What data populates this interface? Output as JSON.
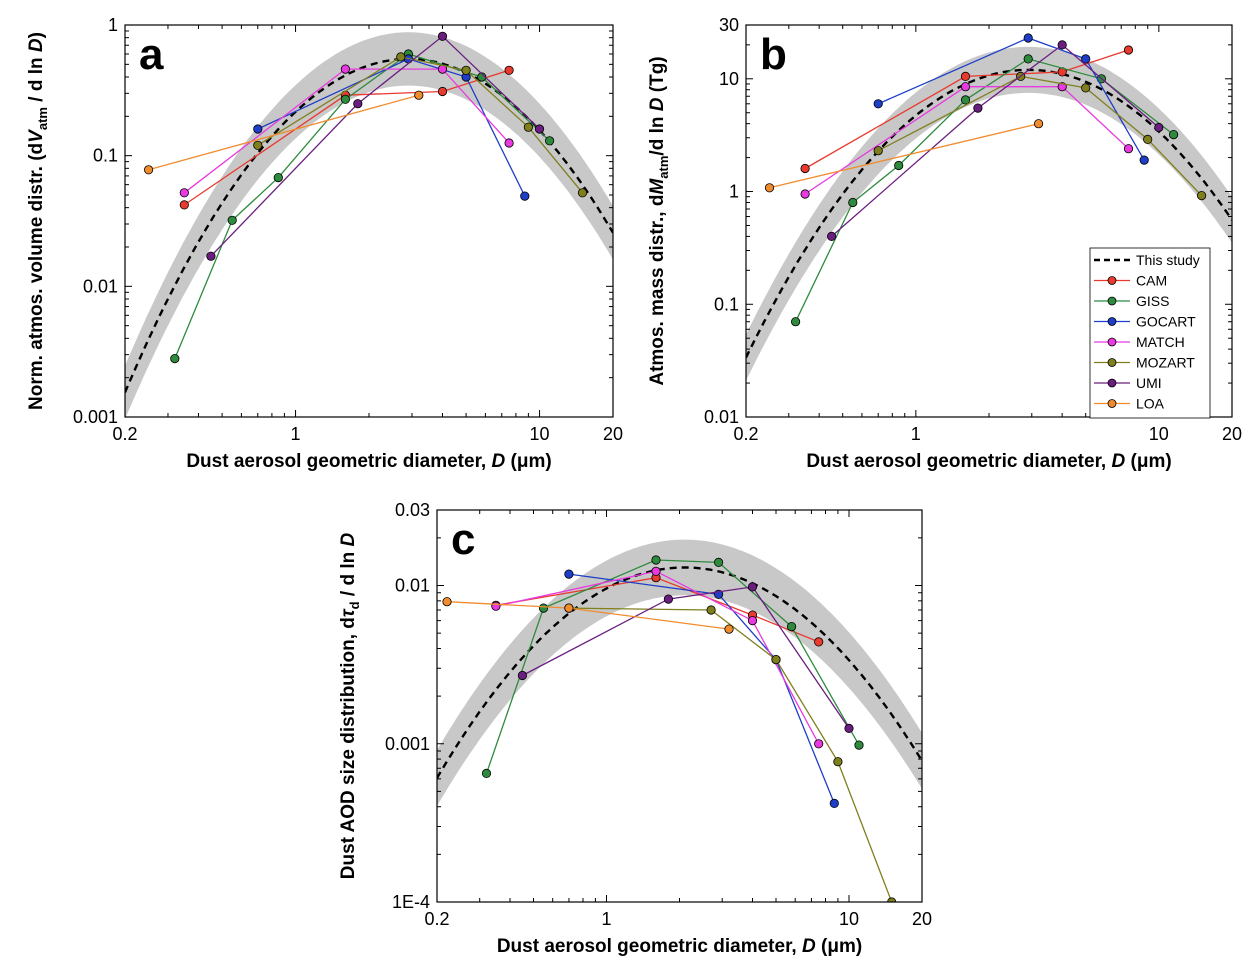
{
  "chart_data": [
    {
      "type": "line",
      "panel_label": "a",
      "xlabel": "Dust aerosol geometric diameter, D (μm)",
      "ylabel": "Norm. atmos. volume distr. (dVatm / d ln D)",
      "xscale": "log",
      "yscale": "log",
      "xlim": [
        0.2,
        20
      ],
      "ylim": [
        0.001,
        1
      ],
      "x_ticks": [
        "0.2",
        "1",
        "10",
        "20"
      ],
      "y_ticks": [
        "0.001",
        "0.01",
        "0.1",
        "1"
      ],
      "this_study": {
        "name": "This study",
        "color": "#000000",
        "style": "dashed",
        "mu": 2.9,
        "sigma": 0.78,
        "peak": 0.55,
        "band_factor": 1.6
      },
      "series": [
        {
          "name": "CAM",
          "color": "#e83a2e",
          "x": [
            0.35,
            1.6,
            4.0,
            7.5
          ],
          "y": [
            0.042,
            0.29,
            0.31,
            0.45
          ]
        },
        {
          "name": "GISS",
          "color": "#2e8b3e",
          "x": [
            0.32,
            0.55,
            0.85,
            1.6,
            2.9,
            5.8,
            11.0
          ],
          "y": [
            0.0028,
            0.032,
            0.068,
            0.27,
            0.6,
            0.4,
            0.13
          ]
        },
        {
          "name": "GOCART",
          "color": "#1e3ec8",
          "x": [
            0.7,
            2.9,
            5.0,
            8.7
          ],
          "y": [
            0.16,
            0.55,
            0.4,
            0.049
          ]
        },
        {
          "name": "MATCH",
          "color": "#e83ae0",
          "x": [
            0.35,
            1.6,
            4.0,
            7.5
          ],
          "y": [
            0.052,
            0.46,
            0.46,
            0.125
          ]
        },
        {
          "name": "MOZART",
          "color": "#7f7f1e",
          "x": [
            0.7,
            2.7,
            5.0,
            9.0,
            15.0
          ],
          "y": [
            0.12,
            0.57,
            0.45,
            0.165,
            0.052
          ]
        },
        {
          "name": "UMI",
          "color": "#6a1e7f",
          "x": [
            0.45,
            1.8,
            4.0,
            10.0
          ],
          "y": [
            0.017,
            0.25,
            0.82,
            0.16
          ]
        },
        {
          "name": "LOA",
          "color": "#f08c2e",
          "x": [
            0.25,
            3.2
          ],
          "y": [
            0.078,
            0.29
          ]
        }
      ]
    },
    {
      "type": "line",
      "panel_label": "b",
      "xlabel": "Dust aerosol geometric diameter, D (μm)",
      "ylabel": "Atmos. mass distr., dMatm/d ln D (Tg)",
      "xscale": "log",
      "yscale": "log",
      "xlim": [
        0.2,
        20
      ],
      "ylim": [
        0.01,
        30
      ],
      "x_ticks": [
        "0.2",
        "1",
        "10",
        "20"
      ],
      "y_ticks": [
        "0.01",
        "0.1",
        "1",
        "10",
        "30"
      ],
      "this_study": {
        "name": "This study",
        "color": "#000000",
        "style": "dashed",
        "mu": 2.9,
        "sigma": 0.78,
        "peak": 12,
        "band_factor": 1.6
      },
      "series": [
        {
          "name": "CAM",
          "color": "#e83a2e",
          "x": [
            0.35,
            1.6,
            4.0,
            7.5
          ],
          "y": [
            1.6,
            10.5,
            11.5,
            18.0
          ]
        },
        {
          "name": "GISS",
          "color": "#2e8b3e",
          "x": [
            0.32,
            0.55,
            0.85,
            1.6,
            2.9,
            5.8,
            11.5
          ],
          "y": [
            0.07,
            0.8,
            1.7,
            6.5,
            15.0,
            10.0,
            3.2
          ]
        },
        {
          "name": "GOCART",
          "color": "#1e3ec8",
          "x": [
            0.7,
            2.9,
            5.0,
            8.7
          ],
          "y": [
            6.0,
            23.0,
            15.0,
            1.9
          ]
        },
        {
          "name": "MATCH",
          "color": "#e83ae0",
          "x": [
            0.35,
            1.6,
            4.0,
            7.5
          ],
          "y": [
            0.95,
            8.5,
            8.5,
            2.4
          ]
        },
        {
          "name": "MOZART",
          "color": "#7f7f1e",
          "x": [
            0.7,
            2.7,
            5.0,
            9.0,
            15.0
          ],
          "y": [
            2.3,
            10.5,
            8.3,
            2.9,
            0.92
          ]
        },
        {
          "name": "UMI",
          "color": "#6a1e7f",
          "x": [
            0.45,
            1.8,
            4.0,
            10.0
          ],
          "y": [
            0.4,
            5.5,
            20.0,
            3.7
          ]
        },
        {
          "name": "LOA",
          "color": "#f08c2e",
          "x": [
            0.25,
            3.2
          ],
          "y": [
            1.08,
            4.0
          ]
        }
      ]
    },
    {
      "type": "line",
      "panel_label": "c",
      "xlabel": "Dust aerosol geometric diameter, D (μm)",
      "ylabel": "Dust AOD size distribution, dτd / d ln D",
      "xscale": "log",
      "yscale": "log",
      "xlim": [
        0.2,
        20
      ],
      "ylim": [
        0.0001,
        0.03
      ],
      "x_ticks": [
        "0.2",
        "1",
        "10",
        "20"
      ],
      "y_ticks": [
        "1E-4",
        "0.001",
        "0.01",
        "0.03"
      ],
      "this_study": {
        "name": "This study",
        "color": "#000000",
        "style": "dashed",
        "mu": 2.1,
        "sigma": 0.95,
        "peak": 0.013,
        "band_factor": 1.5
      },
      "series": [
        {
          "name": "CAM",
          "color": "#e83a2e",
          "x": [
            0.35,
            1.6,
            4.0,
            7.5
          ],
          "y": [
            0.0075,
            0.0112,
            0.0065,
            0.0044
          ]
        },
        {
          "name": "GISS",
          "color": "#2e8b3e",
          "x": [
            0.32,
            0.55,
            1.6,
            2.9,
            5.8,
            11.0
          ],
          "y": [
            0.00065,
            0.0072,
            0.0145,
            0.014,
            0.0055,
            0.00098
          ]
        },
        {
          "name": "GOCART",
          "color": "#1e3ec8",
          "x": [
            0.7,
            2.9,
            5.0,
            8.7
          ],
          "y": [
            0.0118,
            0.0088,
            0.0034,
            0.00042
          ]
        },
        {
          "name": "MATCH",
          "color": "#e83ae0",
          "x": [
            0.35,
            1.6,
            4.0,
            7.5
          ],
          "y": [
            0.0074,
            0.0123,
            0.006,
            0.001
          ]
        },
        {
          "name": "MOZART",
          "color": "#7f7f1e",
          "x": [
            0.7,
            2.7,
            5.0,
            9.0,
            15.0
          ],
          "y": [
            0.0072,
            0.007,
            0.0034,
            0.00077,
            0.0001
          ]
        },
        {
          "name": "UMI",
          "color": "#6a1e7f",
          "x": [
            0.45,
            1.8,
            4.0,
            10.0
          ],
          "y": [
            0.0027,
            0.0082,
            0.0098,
            0.00125
          ]
        },
        {
          "name": "LOA",
          "color": "#f08c2e",
          "x": [
            0.22,
            0.7,
            3.2
          ],
          "y": [
            0.0079,
            0.0072,
            0.0053
          ]
        }
      ]
    }
  ],
  "legend": {
    "placement": "bottom-right of panel b",
    "entries": [
      {
        "name": "This study",
        "color": "#000000",
        "style": "dashed"
      },
      {
        "name": "CAM",
        "color": "#e83a2e"
      },
      {
        "name": "GISS",
        "color": "#2e8b3e"
      },
      {
        "name": "GOCART",
        "color": "#1e3ec8"
      },
      {
        "name": "MATCH",
        "color": "#e83ae0"
      },
      {
        "name": "MOZART",
        "color": "#7f7f1e"
      },
      {
        "name": "UMI",
        "color": "#6a1e7f"
      },
      {
        "name": "LOA",
        "color": "#f08c2e"
      }
    ]
  }
}
